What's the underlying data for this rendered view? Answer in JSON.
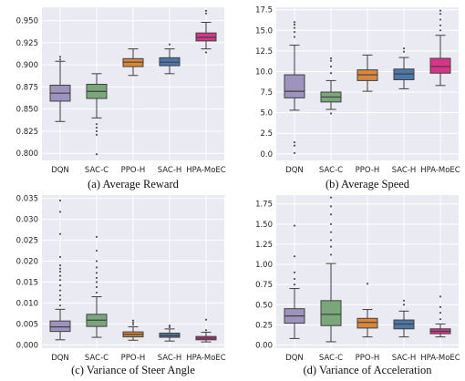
{
  "chart_data": [
    {
      "type": "box",
      "caption": "(a) Average Reward",
      "categories": [
        "DQN",
        "SAC-C",
        "PPO-H",
        "SAC-H",
        "HPA-MoEC"
      ],
      "ylim": [
        0.792,
        0.965
      ],
      "yticks": [
        0.8,
        0.825,
        0.85,
        0.875,
        0.9,
        0.925,
        0.95
      ],
      "ytick_labels": [
        "0.800",
        "0.825",
        "0.850",
        "0.875",
        "0.900",
        "0.925",
        "0.950"
      ],
      "grid": true,
      "boxes": [
        {
          "q1": 0.859,
          "median": 0.868,
          "q3": 0.877,
          "whisker_low": 0.836,
          "whisker_high": 0.904,
          "outliers": [
            0.909,
            0.906
          ]
        },
        {
          "q1": 0.862,
          "median": 0.87,
          "q3": 0.878,
          "whisker_low": 0.84,
          "whisker_high": 0.89,
          "outliers": [
            0.833,
            0.829,
            0.825,
            0.821,
            0.799
          ]
        },
        {
          "q1": 0.898,
          "median": 0.903,
          "q3": 0.907,
          "whisker_low": 0.888,
          "whisker_high": 0.918,
          "outliers": []
        },
        {
          "q1": 0.899,
          "median": 0.903,
          "q3": 0.908,
          "whisker_low": 0.89,
          "whisker_high": 0.918,
          "outliers": [
            0.923
          ]
        },
        {
          "q1": 0.927,
          "median": 0.931,
          "q3": 0.936,
          "whisker_low": 0.918,
          "whisker_high": 0.948,
          "outliers": [
            0.914,
            0.958,
            0.961
          ]
        }
      ]
    },
    {
      "type": "box",
      "caption": "(b) Average Speed",
      "categories": [
        "DQN",
        "SAC-C",
        "PPO-H",
        "SAC-H",
        "HPA-MoEC"
      ],
      "ylim": [
        -0.8,
        17.8
      ],
      "yticks": [
        0,
        2.5,
        5,
        7.5,
        10,
        12.5,
        15,
        17.5
      ],
      "ytick_labels": [
        "0.0",
        "2.5",
        "5.0",
        "7.5",
        "10.0",
        "12.5",
        "15.0",
        "17.5"
      ],
      "grid": true,
      "boxes": [
        {
          "q1": 6.8,
          "median": 7.6,
          "q3": 9.6,
          "whisker_low": 5.3,
          "whisker_high": 13.2,
          "outliers": [
            14.2,
            14.8,
            15.3,
            15.7,
            16.0,
            1.4,
            1.0,
            0.1
          ]
        },
        {
          "q1": 6.3,
          "median": 6.9,
          "q3": 7.5,
          "whisker_low": 5.4,
          "whisker_high": 8.9,
          "outliers": [
            9.8,
            10.6,
            11.3,
            11.6,
            4.9
          ]
        },
        {
          "q1": 8.9,
          "median": 9.6,
          "q3": 10.2,
          "whisker_low": 7.6,
          "whisker_high": 12.0,
          "outliers": []
        },
        {
          "q1": 9.0,
          "median": 9.7,
          "q3": 10.3,
          "whisker_low": 7.9,
          "whisker_high": 11.7,
          "outliers": [
            12.4,
            12.8
          ]
        },
        {
          "q1": 9.8,
          "median": 10.6,
          "q3": 11.6,
          "whisker_low": 8.3,
          "whisker_high": 14.4,
          "outliers": [
            15.0,
            15.6,
            16.3,
            17.0,
            17.4
          ]
        }
      ]
    },
    {
      "type": "box",
      "caption": "(c) Variance of Steer Angle",
      "categories": [
        "DQN",
        "SAC-C",
        "PPO-H",
        "SAC-H",
        "HPA-MoEC"
      ],
      "ylim": [
        -0.0008,
        0.0358
      ],
      "yticks": [
        0,
        0.005,
        0.01,
        0.015,
        0.02,
        0.025,
        0.03,
        0.035
      ],
      "ytick_labels": [
        "0.000",
        "0.005",
        "0.010",
        "0.015",
        "0.020",
        "0.025",
        "0.030",
        "0.035"
      ],
      "grid": true,
      "boxes": [
        {
          "q1": 0.0032,
          "median": 0.0043,
          "q3": 0.0057,
          "whisker_low": 0.0012,
          "whisker_high": 0.0085,
          "outliers": [
            0.0094,
            0.0108,
            0.0118,
            0.013,
            0.0142,
            0.0155,
            0.0165,
            0.0175,
            0.0182,
            0.019,
            0.021,
            0.0265,
            0.0318,
            0.0345
          ]
        },
        {
          "q1": 0.0044,
          "median": 0.0059,
          "q3": 0.0073,
          "whisker_low": 0.0018,
          "whisker_high": 0.0115,
          "outliers": [
            0.0125,
            0.0138,
            0.015,
            0.016,
            0.0172,
            0.0185,
            0.02,
            0.0225,
            0.0258
          ]
        },
        {
          "q1": 0.0019,
          "median": 0.0025,
          "q3": 0.0031,
          "whisker_low": 0.0011,
          "whisker_high": 0.0043,
          "outliers": [
            0.0048,
            0.0053,
            0.0058
          ]
        },
        {
          "q1": 0.0018,
          "median": 0.0022,
          "q3": 0.0028,
          "whisker_low": 0.0009,
          "whisker_high": 0.0038,
          "outliers": [
            0.0042,
            0.0046
          ]
        },
        {
          "q1": 0.0012,
          "median": 0.0016,
          "q3": 0.002,
          "whisker_low": 0.0007,
          "whisker_high": 0.003,
          "outliers": [
            0.0035,
            0.006
          ]
        }
      ]
    },
    {
      "type": "box",
      "caption": "(d) Variance of Acceleration",
      "categories": [
        "DQN",
        "SAC-C",
        "PPO-H",
        "SAC-H",
        "HPA-MoEC"
      ],
      "ylim": [
        -0.04,
        1.86
      ],
      "yticks": [
        0,
        0.25,
        0.5,
        0.75,
        1.0,
        1.25,
        1.5,
        1.75
      ],
      "ytick_labels": [
        "0.00",
        "0.25",
        "0.50",
        "0.75",
        "1.00",
        "1.25",
        "1.50",
        "1.75"
      ],
      "grid": true,
      "boxes": [
        {
          "q1": 0.27,
          "median": 0.36,
          "q3": 0.45,
          "whisker_low": 0.08,
          "whisker_high": 0.7,
          "outliers": [
            0.75,
            0.82,
            0.9,
            1.1,
            1.48
          ]
        },
        {
          "q1": 0.24,
          "median": 0.38,
          "q3": 0.55,
          "whisker_low": 0.04,
          "whisker_high": 1.01,
          "outliers": [
            1.12,
            1.22,
            1.3,
            1.4,
            1.5,
            1.62,
            1.72,
            1.83
          ]
        },
        {
          "q1": 0.21,
          "median": 0.28,
          "q3": 0.33,
          "whisker_low": 0.1,
          "whisker_high": 0.44,
          "outliers": [
            0.76
          ]
        },
        {
          "q1": 0.2,
          "median": 0.26,
          "q3": 0.31,
          "whisker_low": 0.1,
          "whisker_high": 0.42,
          "outliers": [
            0.5,
            0.55
          ]
        },
        {
          "q1": 0.14,
          "median": 0.17,
          "q3": 0.2,
          "whisker_low": 0.1,
          "whisker_high": 0.26,
          "outliers": [
            0.32,
            0.4,
            0.47,
            0.6
          ]
        }
      ]
    }
  ],
  "colors": {
    "DQN": "#9d93bd",
    "SAC-C": "#7aa77a",
    "PPO-H": "#d9873d",
    "SAC-H": "#4b78a8",
    "HPA-MoEC": "#d9338a",
    "plot_bg": "#eaeaf2",
    "grid": "#ffffff",
    "line": "#404040"
  }
}
